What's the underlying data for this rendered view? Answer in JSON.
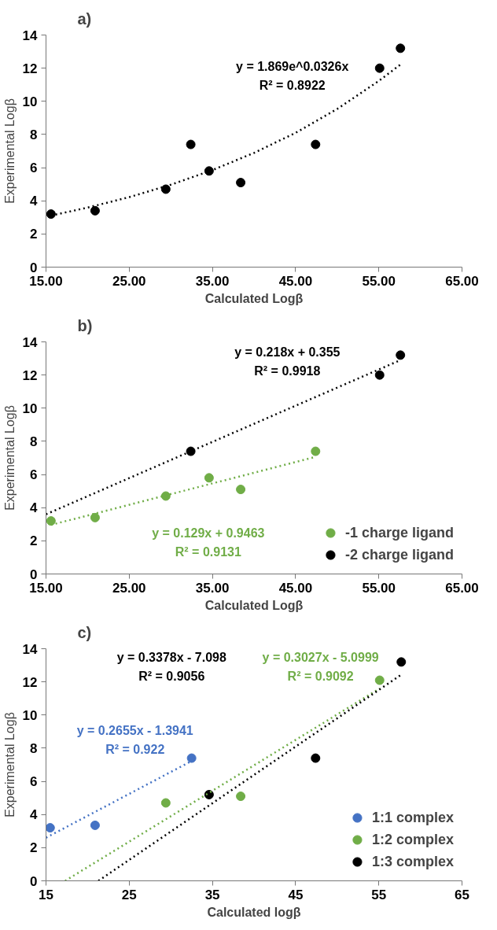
{
  "chart_data": [
    {
      "type": "scatter",
      "title": "a)",
      "xlabel": "Calculated Logβ",
      "ylabel": "Experimental Logβ",
      "marker": "circle",
      "grid": false,
      "legend": false,
      "xlim": [
        15,
        65
      ],
      "xticks": [
        {
          "value": 15,
          "label": "15.00"
        },
        {
          "value": 25,
          "label": "25.00"
        },
        {
          "value": 35,
          "label": "35.00"
        },
        {
          "value": 45,
          "label": "45.00"
        },
        {
          "value": 55,
          "label": "55.00"
        },
        {
          "value": 65,
          "label": "65.00"
        }
      ],
      "ylim": [
        0,
        14
      ],
      "yticks": [
        0,
        2,
        4,
        6,
        8,
        10,
        12,
        14
      ],
      "series": [
        {
          "color": "#000000",
          "x": [
            15.6,
            20.9,
            29.4,
            32.4,
            34.6,
            38.4,
            47.4,
            55.1,
            57.6
          ],
          "values": [
            3.2,
            3.4,
            4.7,
            7.4,
            5.8,
            5.1,
            7.4,
            12.0,
            13.2
          ]
        },
        {
          "type": "line",
          "marker": "none",
          "line_style": "dotted",
          "color": "#000000",
          "x": [
            15.6,
            20,
            25,
            30,
            35,
            40,
            45,
            50,
            55,
            57.6
          ],
          "values": [
            3.11,
            3.59,
            4.22,
            4.97,
            5.85,
            6.89,
            8.1,
            9.54,
            11.23,
            12.22
          ]
        }
      ],
      "annotations": [
        "y = 1.869e^0.0326x\nR² = 0.8922"
      ]
    },
    {
      "type": "scatter",
      "title": "b)",
      "xlabel": "Calculated Logβ",
      "ylabel": "Experimental Logβ",
      "marker": "circle",
      "grid": false,
      "legend": "bottom right",
      "xlim": [
        15,
        65
      ],
      "xticks": [
        {
          "value": 15,
          "label": "15.00"
        },
        {
          "value": 25,
          "label": "25.00"
        },
        {
          "value": 35,
          "label": "35.00"
        },
        {
          "value": 45,
          "label": "45.00"
        },
        {
          "value": 55,
          "label": "55.00"
        },
        {
          "value": 65,
          "label": "65.00"
        }
      ],
      "ylim": [
        0,
        14
      ],
      "yticks": [
        0,
        2,
        4,
        6,
        8,
        10,
        12,
        14
      ],
      "series": [
        {
          "name": "-1 charge ligand",
          "color": "#70ad47",
          "x": [
            15.6,
            20.9,
            29.4,
            34.6,
            38.4,
            47.4
          ],
          "values": [
            3.2,
            3.4,
            4.7,
            5.8,
            5.1,
            7.4
          ]
        },
        {
          "name": "-2 charge ligand",
          "color": "#000000",
          "x": [
            32.4,
            55.1,
            57.6
          ],
          "values": [
            7.4,
            12.0,
            13.2
          ]
        },
        {
          "type": "line",
          "marker": "none",
          "line_style": "dotted",
          "color": "#70ad47",
          "x": [
            15.6,
            47.4
          ],
          "values": [
            2.96,
            7.06
          ]
        },
        {
          "type": "line",
          "marker": "none",
          "line_style": "dotted",
          "color": "#000000",
          "x": [
            15,
            57.6
          ],
          "values": [
            3.6,
            12.9
          ]
        }
      ],
      "annotations": [
        "y = 0.129x + 0.9463\nR² = 0.9131",
        "y = 0.218x + 0.355\nR² = 0.9918"
      ]
    },
    {
      "type": "scatter",
      "title": "c)",
      "xlabel": "Calculated logβ",
      "ylabel": "Experimental Logβ",
      "marker": "circle",
      "grid": false,
      "legend": "bottom right",
      "xlim": [
        15,
        65
      ],
      "xticks": [
        15,
        25,
        35,
        45,
        55,
        65
      ],
      "ylim": [
        0,
        14
      ],
      "yticks": [
        0,
        2,
        4,
        6,
        8,
        10,
        12,
        14
      ],
      "series": [
        {
          "name": "1:1 complex",
          "color": "#4472c4",
          "x": [
            15.5,
            20.9,
            32.5
          ],
          "values": [
            3.2,
            3.35,
            7.4
          ]
        },
        {
          "name": "1:2 complex",
          "color": "#70ad47",
          "x": [
            29.4,
            38.4,
            55.1
          ],
          "values": [
            4.7,
            5.1,
            12.1
          ]
        },
        {
          "name": "1:3 complex",
          "color": "#000000",
          "x": [
            34.6,
            47.4,
            57.7
          ],
          "values": [
            5.2,
            7.4,
            13.2
          ]
        },
        {
          "type": "line",
          "marker": "none",
          "line_style": "dotted",
          "color": "#4472c4",
          "x": [
            15,
            32.4
          ],
          "values": [
            2.6,
            7.2
          ]
        },
        {
          "type": "line",
          "marker": "none",
          "line_style": "dotted",
          "color": "#70ad47",
          "x": [
            17.3,
            55.1
          ],
          "values": [
            0,
            11.6
          ]
        },
        {
          "type": "line",
          "marker": "none",
          "line_style": "dotted",
          "color": "#000000",
          "x": [
            21.3,
            57.6
          ],
          "values": [
            0,
            12.4
          ]
        }
      ],
      "annotations": [
        "y = 0.2655x - 1.3941\nR² = 0.922",
        "y = 0.3027x - 5.0999\nR² = 0.9092",
        "y = 0.3378x - 7.098\nR² = 0.9056"
      ]
    }
  ]
}
